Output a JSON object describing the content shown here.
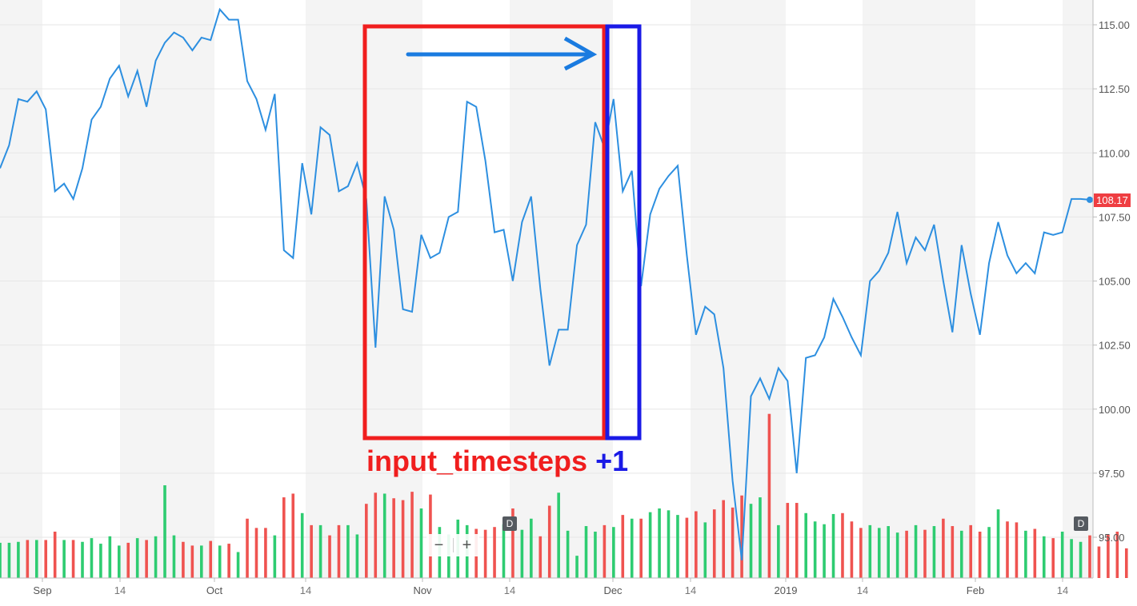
{
  "chart_data": {
    "type": "line",
    "series": [
      {
        "values": [
          109.4,
          110.3,
          112.1,
          112.0,
          112.4,
          111.7,
          108.5,
          108.8,
          108.2,
          109.4,
          111.3,
          111.8,
          112.9,
          113.4,
          112.2,
          113.2,
          111.8,
          113.6,
          114.3,
          114.7,
          114.5,
          114.0,
          114.5,
          114.4,
          115.6,
          115.2,
          115.2,
          112.8,
          112.1,
          110.9,
          112.3,
          106.2,
          105.9,
          109.6,
          107.6,
          111.0,
          110.7,
          108.5,
          108.7,
          109.6,
          108.2,
          102.4,
          108.3,
          107.0,
          103.9,
          103.8,
          106.8,
          105.9,
          106.1,
          107.5,
          107.7,
          112.0,
          111.8,
          109.7,
          106.9,
          107.0,
          105.0,
          107.3,
          108.3,
          104.7,
          101.7,
          103.1,
          103.1,
          106.4,
          107.2,
          111.2,
          110.2,
          112.1,
          108.5,
          109.3,
          104.8,
          107.6,
          108.6,
          109.1,
          109.5,
          106.0,
          102.9,
          104.0,
          103.7,
          101.6,
          97.2,
          94.1,
          100.5,
          101.2,
          100.4,
          101.6,
          101.1,
          97.5,
          102.0,
          102.1,
          102.8,
          104.3,
          103.6,
          102.8,
          102.1,
          105.0,
          105.4,
          106.1,
          107.7,
          105.7,
          106.7,
          106.2,
          107.2,
          105.0,
          103.0,
          106.4,
          104.5,
          102.9,
          105.7,
          107.3,
          106.0,
          105.3,
          105.7,
          105.3,
          106.9,
          106.8,
          106.9,
          108.2,
          108.2,
          108.17
        ],
        "color": "#2d8fe0"
      }
    ],
    "volume": {
      "values": [
        0.38,
        0.38,
        0.39,
        0.41,
        0.41,
        0.41,
        0.5,
        0.41,
        0.41,
        0.39,
        0.43,
        0.37,
        0.45,
        0.35,
        0.38,
        0.43,
        0.41,
        0.45,
        1.0,
        0.46,
        0.39,
        0.35,
        0.35,
        0.4,
        0.35,
        0.37,
        0.28,
        0.64,
        0.54,
        0.54,
        0.46,
        0.87,
        0.91,
        0.7,
        0.57,
        0.57,
        0.46,
        0.57,
        0.57,
        0.47,
        0.8,
        0.92,
        0.91,
        0.86,
        0.84,
        0.93,
        0.75,
        0.9,
        0.55,
        0.47,
        0.63,
        0.57,
        0.53,
        0.52,
        0.55,
        0.58,
        0.75,
        0.52,
        0.64,
        0.45,
        0.78,
        0.92,
        0.51,
        0.24,
        0.56,
        0.5,
        0.57,
        0.55,
        0.68,
        0.64,
        0.64,
        0.71,
        0.75,
        0.73,
        0.68,
        0.65,
        0.72,
        0.6,
        0.74,
        0.84,
        0.76,
        0.89,
        0.8,
        0.87,
        1.77,
        0.57,
        0.81,
        0.81,
        0.7,
        0.61,
        0.58,
        0.69,
        0.7,
        0.61,
        0.54,
        0.57,
        0.54,
        0.56,
        0.49,
        0.51,
        0.57,
        0.52,
        0.56,
        0.64,
        0.56,
        0.51,
        0.57,
        0.5,
        0.55,
        0.74,
        0.61,
        0.6,
        0.51,
        0.53,
        0.45,
        0.43,
        0.5,
        0.42,
        0.39,
        0.46,
        0.34,
        0.47,
        0.5,
        0.32
      ],
      "up_color": "#2ecc71",
      "down_color": "#ef5350"
    },
    "x_ticks": [
      "Sep",
      "14",
      "Oct",
      "14",
      "Nov",
      "14",
      "Dec",
      "14",
      "2019",
      "14",
      "Feb",
      "14"
    ],
    "y_ticks": [
      "115.00",
      "112.50",
      "110.00",
      "107.50",
      "105.00",
      "102.50",
      "100.00",
      "97.50",
      "95.00"
    ],
    "ylim": [
      93.6,
      116.0
    ],
    "last_price": "108.17",
    "price_tag_color": "#ef3e42",
    "grid": true,
    "annotations": {
      "window_red_label": "input_timesteps",
      "window_blue_label": "+1",
      "window_red_color": "#f01e1e",
      "window_blue_color": "#1a1ae6",
      "arrow_color": "#1a7be0",
      "event_marker": "D"
    },
    "zoom_out_label": "−",
    "zoom_in_label": "+"
  }
}
